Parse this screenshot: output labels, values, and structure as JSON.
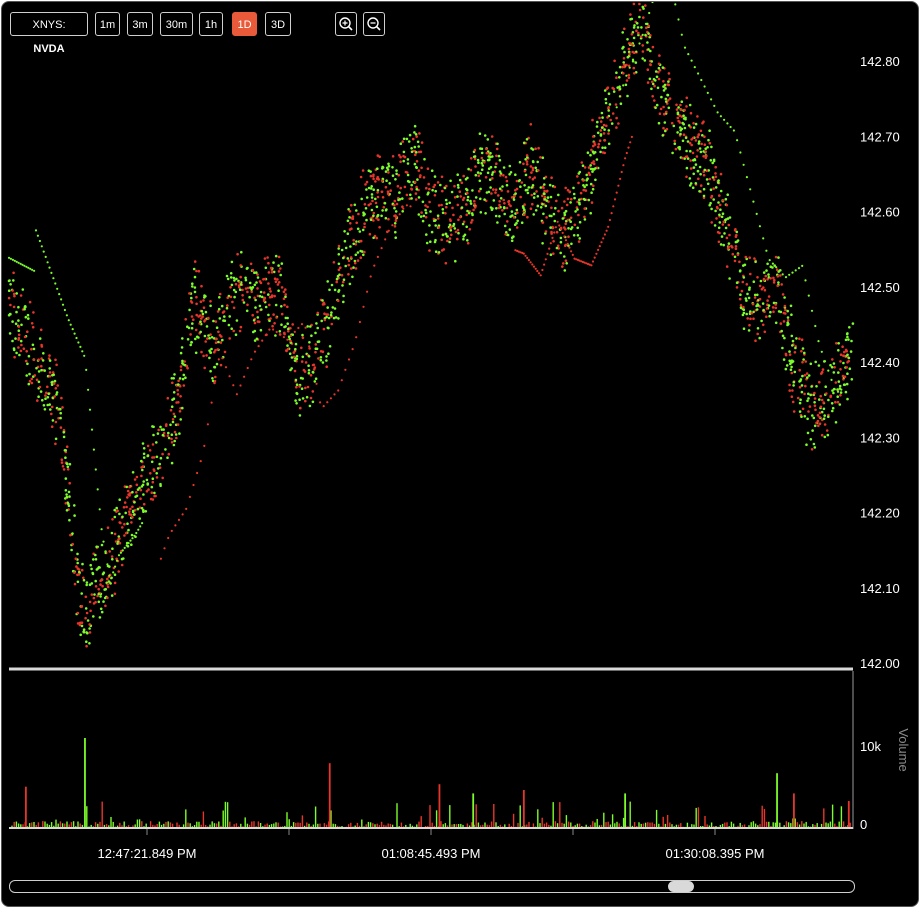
{
  "toolbar": {
    "exchange": "XNYS:",
    "ticker": "NVDA",
    "intervals": [
      {
        "label": "1m",
        "active": false
      },
      {
        "label": "3m",
        "active": false
      },
      {
        "label": "30m",
        "active": false
      },
      {
        "label": "1h",
        "active": false
      },
      {
        "label": "1D",
        "active": true
      },
      {
        "label": "3D",
        "active": false
      }
    ],
    "zoom_in_icon": "zoom-in-icon",
    "zoom_out_icon": "zoom-out-icon"
  },
  "colors": {
    "up": "#7CFC2A",
    "down": "#E8352A",
    "background": "#000000",
    "axis_text": "#ffffff",
    "volume_label": "#8a8a8a",
    "active_button": "#e85a3a"
  },
  "chart_data": {
    "type": "scatter",
    "price_axis": {
      "ylim": [
        142.0,
        142.88
      ],
      "ticks": [
        "142.00",
        "142.10",
        "142.20",
        "142.30",
        "142.40",
        "142.50",
        "142.60",
        "142.70",
        "142.80"
      ]
    },
    "volume_axis": {
      "label": "Volume",
      "ticks": [
        "0",
        "10k"
      ]
    },
    "x_ticks": [
      "12:47:21.849 PM",
      "01:08:45.493 PM",
      "01:30:08.395 PM"
    ],
    "price_series": [
      {
        "t": 0.0,
        "p": 142.48
      },
      {
        "t": 0.02,
        "p": 142.43
      },
      {
        "t": 0.04,
        "p": 142.38
      },
      {
        "t": 0.06,
        "p": 142.34
      },
      {
        "t": 0.08,
        "p": 142.12
      },
      {
        "t": 0.09,
        "p": 142.06
      },
      {
        "t": 0.1,
        "p": 142.1
      },
      {
        "t": 0.12,
        "p": 142.14
      },
      {
        "t": 0.14,
        "p": 142.19
      },
      {
        "t": 0.16,
        "p": 142.25
      },
      {
        "t": 0.18,
        "p": 142.28
      },
      {
        "t": 0.2,
        "p": 142.35
      },
      {
        "t": 0.22,
        "p": 142.48
      },
      {
        "t": 0.24,
        "p": 142.42
      },
      {
        "t": 0.26,
        "p": 142.47
      },
      {
        "t": 0.28,
        "p": 142.5
      },
      {
        "t": 0.3,
        "p": 142.48
      },
      {
        "t": 0.32,
        "p": 142.5
      },
      {
        "t": 0.34,
        "p": 142.38
      },
      {
        "t": 0.36,
        "p": 142.4
      },
      {
        "t": 0.38,
        "p": 142.46
      },
      {
        "t": 0.4,
        "p": 142.55
      },
      {
        "t": 0.42,
        "p": 142.6
      },
      {
        "t": 0.44,
        "p": 142.63
      },
      {
        "t": 0.46,
        "p": 142.62
      },
      {
        "t": 0.48,
        "p": 142.68
      },
      {
        "t": 0.5,
        "p": 142.6
      },
      {
        "t": 0.52,
        "p": 142.58
      },
      {
        "t": 0.54,
        "p": 142.6
      },
      {
        "t": 0.56,
        "p": 142.66
      },
      {
        "t": 0.58,
        "p": 142.64
      },
      {
        "t": 0.6,
        "p": 142.6
      },
      {
        "t": 0.62,
        "p": 142.66
      },
      {
        "t": 0.64,
        "p": 142.6
      },
      {
        "t": 0.66,
        "p": 142.58
      },
      {
        "t": 0.68,
        "p": 142.62
      },
      {
        "t": 0.7,
        "p": 142.7
      },
      {
        "t": 0.72,
        "p": 142.76
      },
      {
        "t": 0.74,
        "p": 142.84
      },
      {
        "t": 0.75,
        "p": 142.86
      },
      {
        "t": 0.77,
        "p": 142.76
      },
      {
        "t": 0.79,
        "p": 142.72
      },
      {
        "t": 0.81,
        "p": 142.68
      },
      {
        "t": 0.83,
        "p": 142.66
      },
      {
        "t": 0.85,
        "p": 142.58
      },
      {
        "t": 0.87,
        "p": 142.5
      },
      {
        "t": 0.89,
        "p": 142.48
      },
      {
        "t": 0.91,
        "p": 142.5
      },
      {
        "t": 0.93,
        "p": 142.4
      },
      {
        "t": 0.95,
        "p": 142.34
      },
      {
        "t": 0.97,
        "p": 142.36
      },
      {
        "t": 0.99,
        "p": 142.4
      },
      {
        "t": 1.0,
        "p": 142.42
      }
    ],
    "volume_spikes": [
      {
        "t": 0.09,
        "v": 10600,
        "side": "up"
      },
      {
        "t": 0.02,
        "v": 4800,
        "side": "down"
      },
      {
        "t": 0.38,
        "v": 7600,
        "side": "down"
      },
      {
        "t": 0.51,
        "v": 5100,
        "side": "down"
      },
      {
        "t": 0.55,
        "v": 4000,
        "side": "up"
      },
      {
        "t": 0.61,
        "v": 4400,
        "side": "down"
      },
      {
        "t": 0.73,
        "v": 4000,
        "side": "up"
      },
      {
        "t": 0.91,
        "v": 6400,
        "side": "up"
      },
      {
        "t": 0.93,
        "v": 4000,
        "side": "down"
      },
      {
        "t": 0.995,
        "v": 3100,
        "side": "down"
      }
    ]
  }
}
